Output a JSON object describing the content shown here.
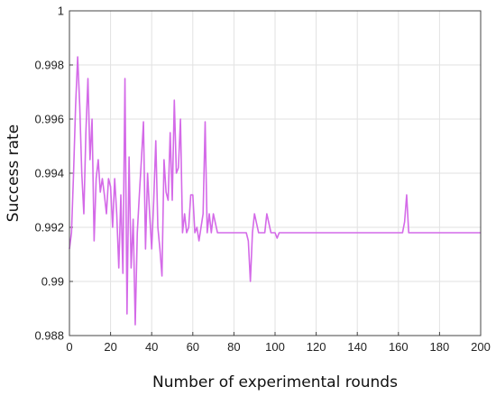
{
  "chart_data": {
    "type": "line",
    "title": "",
    "xlabel": "Number of experimental rounds",
    "ylabel": "Success rate",
    "xlim": [
      0,
      200
    ],
    "ylim": [
      0.988,
      1.0
    ],
    "xticks": [
      0,
      20,
      40,
      60,
      80,
      100,
      120,
      140,
      160,
      180,
      200
    ],
    "yticks": [
      0.988,
      0.99,
      0.992,
      0.994,
      0.996,
      0.998,
      1
    ],
    "xtick_labels": [
      "0",
      "20",
      "40",
      "60",
      "80",
      "100",
      "120",
      "140",
      "160",
      "180",
      "200"
    ],
    "ytick_labels": [
      "0.988",
      "0.99",
      "0.992",
      "0.994",
      "0.996",
      "0.998",
      "1"
    ],
    "grid": true,
    "line_color": "#d46ae8",
    "series": [
      {
        "x": [
          0,
          1,
          2,
          3,
          4,
          5,
          6,
          7,
          8,
          9,
          10,
          11,
          12,
          13,
          14,
          15,
          16,
          17,
          18,
          19,
          20,
          21,
          22,
          23,
          24,
          25,
          26,
          27,
          28,
          29,
          30,
          31,
          32,
          33,
          34,
          35,
          36,
          37,
          38,
          39,
          40,
          41,
          42,
          43,
          44,
          45,
          46,
          47,
          48,
          49,
          50,
          51,
          52,
          53,
          54,
          55,
          56,
          57,
          58,
          59,
          60,
          61,
          62,
          63,
          64,
          65,
          66,
          67,
          68,
          69,
          70,
          72,
          75,
          80,
          85,
          86,
          87,
          88,
          89,
          90,
          92,
          94,
          95,
          96,
          98,
          100,
          101,
          102,
          105,
          110,
          120,
          130,
          140,
          150,
          160,
          162,
          163,
          164,
          165,
          166,
          170,
          180,
          190,
          200
        ],
        "y": [
          0.9912,
          0.9918,
          0.994,
          0.9965,
          0.9983,
          0.9965,
          0.994,
          0.9925,
          0.9955,
          0.9975,
          0.9945,
          0.996,
          0.9915,
          0.9938,
          0.9945,
          0.9933,
          0.9938,
          0.9932,
          0.9925,
          0.9938,
          0.9935,
          0.992,
          0.9938,
          0.9925,
          0.9905,
          0.9932,
          0.9903,
          0.9975,
          0.9888,
          0.9946,
          0.9905,
          0.9923,
          0.9884,
          0.9918,
          0.9932,
          0.9945,
          0.9959,
          0.9912,
          0.994,
          0.9925,
          0.9912,
          0.993,
          0.9952,
          0.992,
          0.9912,
          0.9902,
          0.9945,
          0.9933,
          0.993,
          0.9955,
          0.993,
          0.9967,
          0.994,
          0.9942,
          0.996,
          0.9918,
          0.9925,
          0.9918,
          0.992,
          0.9932,
          0.9932,
          0.9918,
          0.992,
          0.9915,
          0.992,
          0.9925,
          0.9959,
          0.9918,
          0.9925,
          0.9918,
          0.9925,
          0.9918,
          0.9918,
          0.9918,
          0.9918,
          0.9918,
          0.9915,
          0.99,
          0.9918,
          0.9925,
          0.9918,
          0.9918,
          0.9918,
          0.9925,
          0.9918,
          0.9918,
          0.9916,
          0.9918,
          0.9918,
          0.9918,
          0.9918,
          0.9918,
          0.9918,
          0.9918,
          0.9918,
          0.9918,
          0.9922,
          0.9932,
          0.9918,
          0.9918,
          0.9918,
          0.9918,
          0.9918,
          0.9918
        ]
      }
    ]
  }
}
